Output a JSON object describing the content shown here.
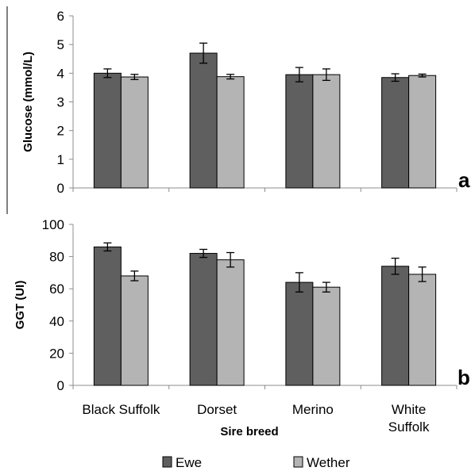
{
  "chart_data": [
    {
      "type": "bar",
      "panel_label": "a",
      "categories": [
        "Black Suffolk",
        "Dorset",
        "Merino",
        "White Suffolk"
      ],
      "ylabel": "Glucose (mmol/L)",
      "xlabel": "",
      "ylim": [
        0,
        6
      ],
      "yticks": [
        0,
        1,
        2,
        3,
        4,
        5,
        6
      ],
      "grid": false,
      "series": [
        {
          "name": "Ewe",
          "color": "#5f5f5f",
          "values": [
            4.0,
            4.7,
            3.95,
            3.85
          ],
          "errors": [
            0.15,
            0.35,
            0.25,
            0.13
          ]
        },
        {
          "name": "Wether",
          "color": "#b4b4b4",
          "values": [
            3.87,
            3.88,
            3.95,
            3.92
          ],
          "errors": [
            0.09,
            0.08,
            0.2,
            0.05
          ]
        }
      ]
    },
    {
      "type": "bar",
      "panel_label": "b",
      "categories": [
        "Black Suffolk",
        "Dorset",
        "Merino",
        "White Suffolk"
      ],
      "category_labels": [
        [
          "Black Suffolk"
        ],
        [
          "Dorset"
        ],
        [
          "Merino"
        ],
        [
          "White",
          "Suffolk"
        ]
      ],
      "ylabel": "GGT (UI)",
      "xlabel": "Sire breed",
      "ylim": [
        0,
        100
      ],
      "yticks": [
        0,
        20,
        40,
        60,
        80,
        100
      ],
      "grid": false,
      "series": [
        {
          "name": "Ewe",
          "color": "#5f5f5f",
          "values": [
            86,
            82,
            64,
            74
          ],
          "errors": [
            2.5,
            2.5,
            6,
            5
          ]
        },
        {
          "name": "Wether",
          "color": "#b4b4b4",
          "values": [
            68,
            78,
            61,
            69
          ],
          "errors": [
            3,
            4.5,
            3,
            4.5
          ]
        }
      ]
    }
  ],
  "legend": {
    "placement": "bottom",
    "items": [
      {
        "label": "Ewe",
        "color": "#5f5f5f"
      },
      {
        "label": "Wether",
        "color": "#b4b4b4"
      }
    ]
  }
}
